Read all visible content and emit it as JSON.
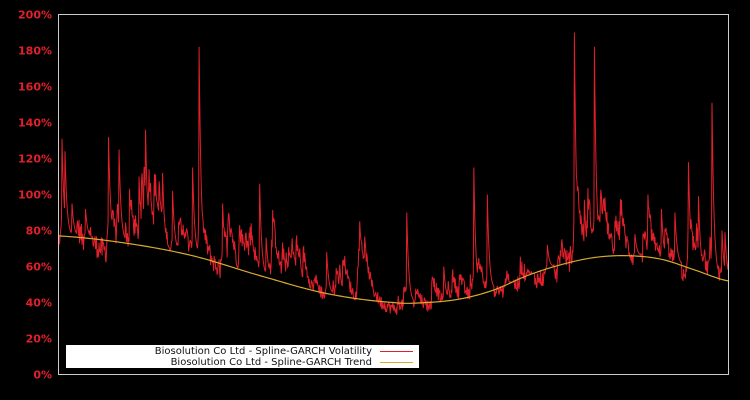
{
  "chart_data": {
    "type": "line",
    "title": "",
    "xlabel": "",
    "ylabel": "",
    "ylim": [
      0,
      200
    ],
    "y_ticks": [
      "0%",
      "20%",
      "40%",
      "60%",
      "80%",
      "100%",
      "120%",
      "140%",
      "160%",
      "180%",
      "200%"
    ],
    "grid": false,
    "legend_position": "lower left",
    "series": [
      {
        "name": "Biosolution Co Ltd - Spline-GARCH Volatility",
        "color": "#e0202a",
        "baseline_offset": -12,
        "spikes": [
          {
            "x": 0.005,
            "value": 131
          },
          {
            "x": 0.01,
            "value": 124
          },
          {
            "x": 0.02,
            "value": 95
          },
          {
            "x": 0.04,
            "value": 92
          },
          {
            "x": 0.075,
            "value": 132
          },
          {
            "x": 0.09,
            "value": 125
          },
          {
            "x": 0.12,
            "value": 110
          },
          {
            "x": 0.13,
            "value": 136
          },
          {
            "x": 0.155,
            "value": 112
          },
          {
            "x": 0.17,
            "value": 102
          },
          {
            "x": 0.2,
            "value": 115
          },
          {
            "x": 0.21,
            "value": 182
          },
          {
            "x": 0.245,
            "value": 95
          },
          {
            "x": 0.27,
            "value": 83
          },
          {
            "x": 0.3,
            "value": 106
          },
          {
            "x": 0.31,
            "value": 76
          },
          {
            "x": 0.36,
            "value": 70
          },
          {
            "x": 0.4,
            "value": 68
          },
          {
            "x": 0.42,
            "value": 61
          },
          {
            "x": 0.45,
            "value": 62
          },
          {
            "x": 0.52,
            "value": 90
          },
          {
            "x": 0.575,
            "value": 60
          },
          {
            "x": 0.62,
            "value": 115
          },
          {
            "x": 0.64,
            "value": 100
          },
          {
            "x": 0.67,
            "value": 53
          },
          {
            "x": 0.7,
            "value": 58
          },
          {
            "x": 0.73,
            "value": 72
          },
          {
            "x": 0.75,
            "value": 45
          },
          {
            "x": 0.77,
            "value": 190
          },
          {
            "x": 0.785,
            "value": 97
          },
          {
            "x": 0.8,
            "value": 182
          },
          {
            "x": 0.82,
            "value": 82
          },
          {
            "x": 0.84,
            "value": 97
          },
          {
            "x": 0.86,
            "value": 78
          },
          {
            "x": 0.88,
            "value": 100
          },
          {
            "x": 0.9,
            "value": 92
          },
          {
            "x": 0.92,
            "value": 90
          },
          {
            "x": 0.94,
            "value": 118
          },
          {
            "x": 0.955,
            "value": 99
          },
          {
            "x": 0.975,
            "value": 151
          },
          {
            "x": 0.99,
            "value": 80
          },
          {
            "x": 0.995,
            "value": 79
          }
        ]
      },
      {
        "name": "Biosolution Co Ltd - Spline-GARCH Trend",
        "color": "#d9a830",
        "points": [
          {
            "x": 0.0,
            "value": 77
          },
          {
            "x": 0.1,
            "value": 73
          },
          {
            "x": 0.2,
            "value": 66
          },
          {
            "x": 0.3,
            "value": 55
          },
          {
            "x": 0.4,
            "value": 45
          },
          {
            "x": 0.5,
            "value": 40
          },
          {
            "x": 0.55,
            "value": 40
          },
          {
            "x": 0.6,
            "value": 42
          },
          {
            "x": 0.65,
            "value": 47
          },
          {
            "x": 0.7,
            "value": 55
          },
          {
            "x": 0.75,
            "value": 61
          },
          {
            "x": 0.8,
            "value": 65
          },
          {
            "x": 0.85,
            "value": 66
          },
          {
            "x": 0.9,
            "value": 64
          },
          {
            "x": 0.95,
            "value": 58
          },
          {
            "x": 1.0,
            "value": 52
          }
        ]
      }
    ]
  },
  "legend": {
    "items": [
      {
        "label": "Biosolution Co Ltd - Spline-GARCH Volatility",
        "color": "#e0202a"
      },
      {
        "label": "Biosolution Co Ltd - Spline-GARCH Trend",
        "color": "#d9a830"
      }
    ]
  },
  "colors": {
    "background": "#000000",
    "axis": "#cccccc",
    "tick_label": "#e0202a"
  }
}
